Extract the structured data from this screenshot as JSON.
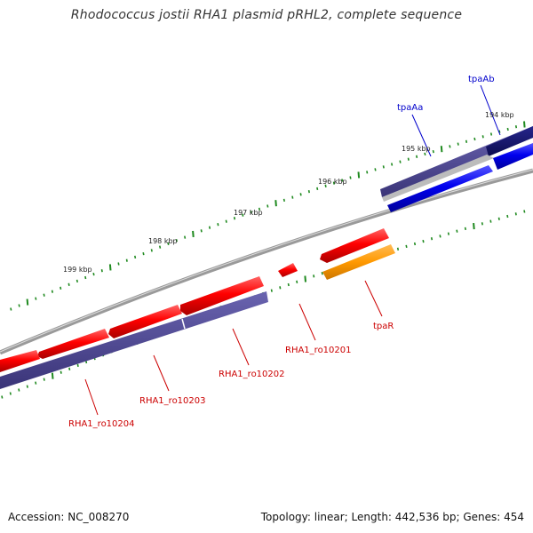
{
  "title": "Rhodococcus jostii RHA1 plasmid pRHL2, complete sequence",
  "footer": {
    "accession": "Accession: NC_008270",
    "stats": "Topology: linear; Length: 442,536 bp; Genes: 454"
  },
  "ticks": {
    "major": [
      {
        "label": "194 kbp"
      },
      {
        "label": "195 kbp"
      },
      {
        "label": "196 kbp"
      },
      {
        "label": "197 kbp"
      },
      {
        "label": "198 kbp"
      },
      {
        "label": "199 kbp"
      }
    ]
  },
  "genes": [
    {
      "label": "tpaAb",
      "color": "#0000cc"
    },
    {
      "label": "tpaAa",
      "color": "#0000cc"
    },
    {
      "label": "tpaR",
      "color": "#cc0000"
    },
    {
      "label": "RHA1_ro10201",
      "color": "#cc0000"
    },
    {
      "label": "RHA1_ro10202",
      "color": "#cc0000"
    },
    {
      "label": "RHA1_ro10203",
      "color": "#cc0000"
    },
    {
      "label": "RHA1_ro10204",
      "color": "#cc0000"
    }
  ],
  "colors": {
    "backbone": "#8a8a8a",
    "ticks": "#1f8a1f",
    "cds_forward": "#ee0000",
    "cds_reverse": "#0000ee",
    "regulator": "#ff9900",
    "operon_dark": "#1a1a80",
    "feature_purple": "#4c4494"
  }
}
